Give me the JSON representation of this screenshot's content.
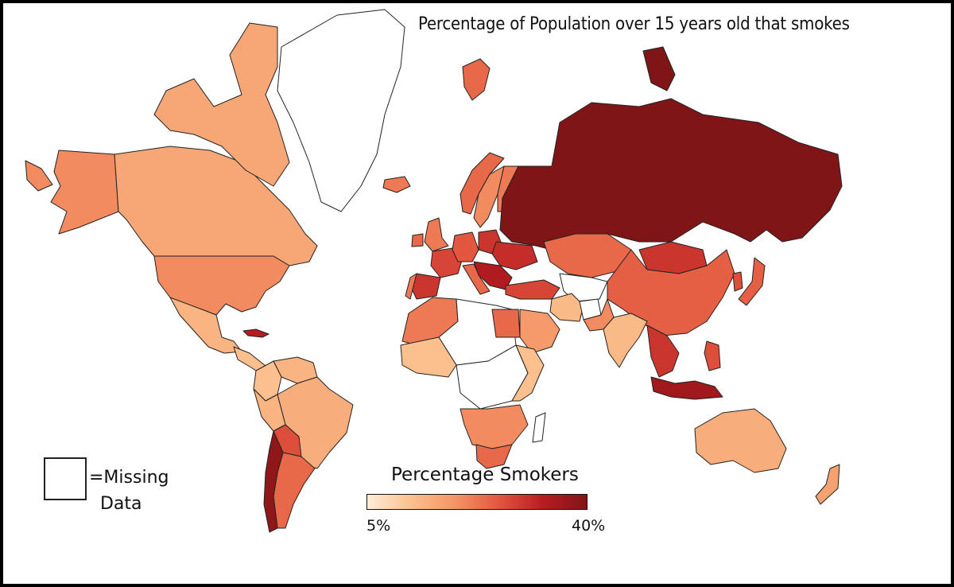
{
  "title": "Percentage of Population over 15 years old that smokes",
  "legend": {
    "title": "Percentage Smokers",
    "min_label": "5%",
    "max_label": "40%",
    "min_value": 5,
    "max_value": 40,
    "colors": [
      "#fdedd8",
      "#fbc08d",
      "#f49565",
      "#e3563f",
      "#b81c22",
      "#7f1517"
    ]
  },
  "missing": {
    "label": "=Missing\n  Data",
    "color": "#ffffff"
  },
  "regions": [
    {
      "name": "Canada",
      "value": 16
    },
    {
      "name": "Alaska",
      "value": 20
    },
    {
      "name": "Greenland",
      "value": null
    },
    {
      "name": "United States",
      "value": 20
    },
    {
      "name": "Mexico",
      "value": 14
    },
    {
      "name": "Central America",
      "value": 12
    },
    {
      "name": "Cuba",
      "value": 33
    },
    {
      "name": "Colombia",
      "value": 12
    },
    {
      "name": "Venezuela",
      "value": 14
    },
    {
      "name": "Brazil",
      "value": 15
    },
    {
      "name": "Peru",
      "value": 14
    },
    {
      "name": "Bolivia",
      "value": 27
    },
    {
      "name": "Argentina",
      "value": 24
    },
    {
      "name": "Chile",
      "value": 38
    },
    {
      "name": "Iceland",
      "value": 22
    },
    {
      "name": "Svalbard",
      "value": 24
    },
    {
      "name": "Norway",
      "value": 24
    },
    {
      "name": "Sweden",
      "value": 20
    },
    {
      "name": "Finland",
      "value": 22
    },
    {
      "name": "United Kingdom",
      "value": 22
    },
    {
      "name": "Ireland",
      "value": 24
    },
    {
      "name": "Spain",
      "value": 30
    },
    {
      "name": "Portugal",
      "value": 22
    },
    {
      "name": "France",
      "value": 28
    },
    {
      "name": "Germany",
      "value": 26
    },
    {
      "name": "Poland",
      "value": 30
    },
    {
      "name": "Ukraine",
      "value": 31
    },
    {
      "name": "Italy",
      "value": 24
    },
    {
      "name": "Balkans",
      "value": 34
    },
    {
      "name": "Turkey",
      "value": 28
    },
    {
      "name": "Russia",
      "value": 40
    },
    {
      "name": "Kazakhstan",
      "value": 24
    },
    {
      "name": "Central Asia",
      "value": null
    },
    {
      "name": "Mongolia",
      "value": 30
    },
    {
      "name": "China",
      "value": 25
    },
    {
      "name": "Japan",
      "value": 25
    },
    {
      "name": "Korea",
      "value": 27
    },
    {
      "name": "Iran",
      "value": 13
    },
    {
      "name": "Saudi Arabia",
      "value": 18
    },
    {
      "name": "Afghanistan",
      "value": null
    },
    {
      "name": "Pakistan",
      "value": 20
    },
    {
      "name": "India",
      "value": 13
    },
    {
      "name": "Southeast Asia",
      "value": 30
    },
    {
      "name": "Philippines",
      "value": 27
    },
    {
      "name": "Indonesia",
      "value": 36
    },
    {
      "name": "Australia",
      "value": 15
    },
    {
      "name": "New Zealand",
      "value": 17
    },
    {
      "name": "North Africa",
      "value": 22
    },
    {
      "name": "Sahara",
      "value": null
    },
    {
      "name": "Egypt",
      "value": 24
    },
    {
      "name": "West Africa",
      "value": 12
    },
    {
      "name": "Central Africa",
      "value": null
    },
    {
      "name": "East Africa",
      "value": 12
    },
    {
      "name": "Southern Africa",
      "value": 20
    },
    {
      "name": "South Africa",
      "value": 24
    },
    {
      "name": "Madagascar",
      "value": null
    }
  ]
}
